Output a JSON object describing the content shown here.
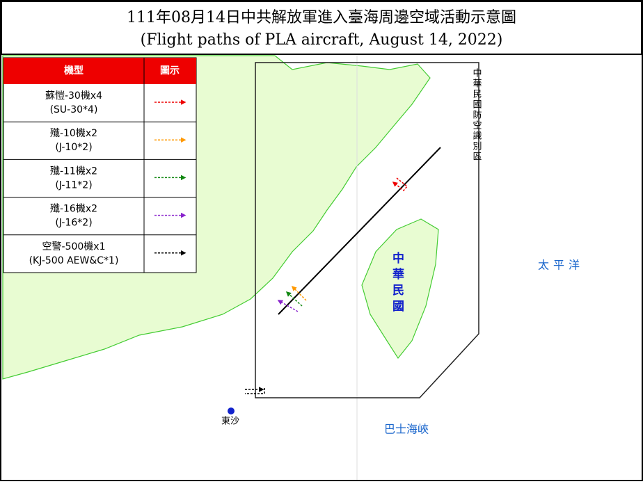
{
  "title": {
    "line1": "111年08月14日中共解放軍進入臺海周邊空域活動示意圖",
    "line2": "(Flight paths of PLA aircraft, August 14, 2022)"
  },
  "legend": {
    "headers": [
      "機型",
      "圖示"
    ],
    "rows": [
      {
        "name": "蘇愷-30機x4",
        "code": "(SU-30*4)"
      },
      {
        "name": "殲-10機x2",
        "code": "(J-10*2)"
      },
      {
        "name": "殲-11機x2",
        "code": "(J-11*2)"
      },
      {
        "name": "殲-16機x2",
        "code": "(J-16*2)"
      },
      {
        "name": "空警-500機x1",
        "code": "(KJ-500 AEW&C*1)"
      }
    ]
  },
  "map_labels": {
    "adiz": "中華民國防空識別區",
    "pacific": "太平洋",
    "bashi": "巴士海峽",
    "roc": "中華民國",
    "dongsha": "東沙"
  }
}
